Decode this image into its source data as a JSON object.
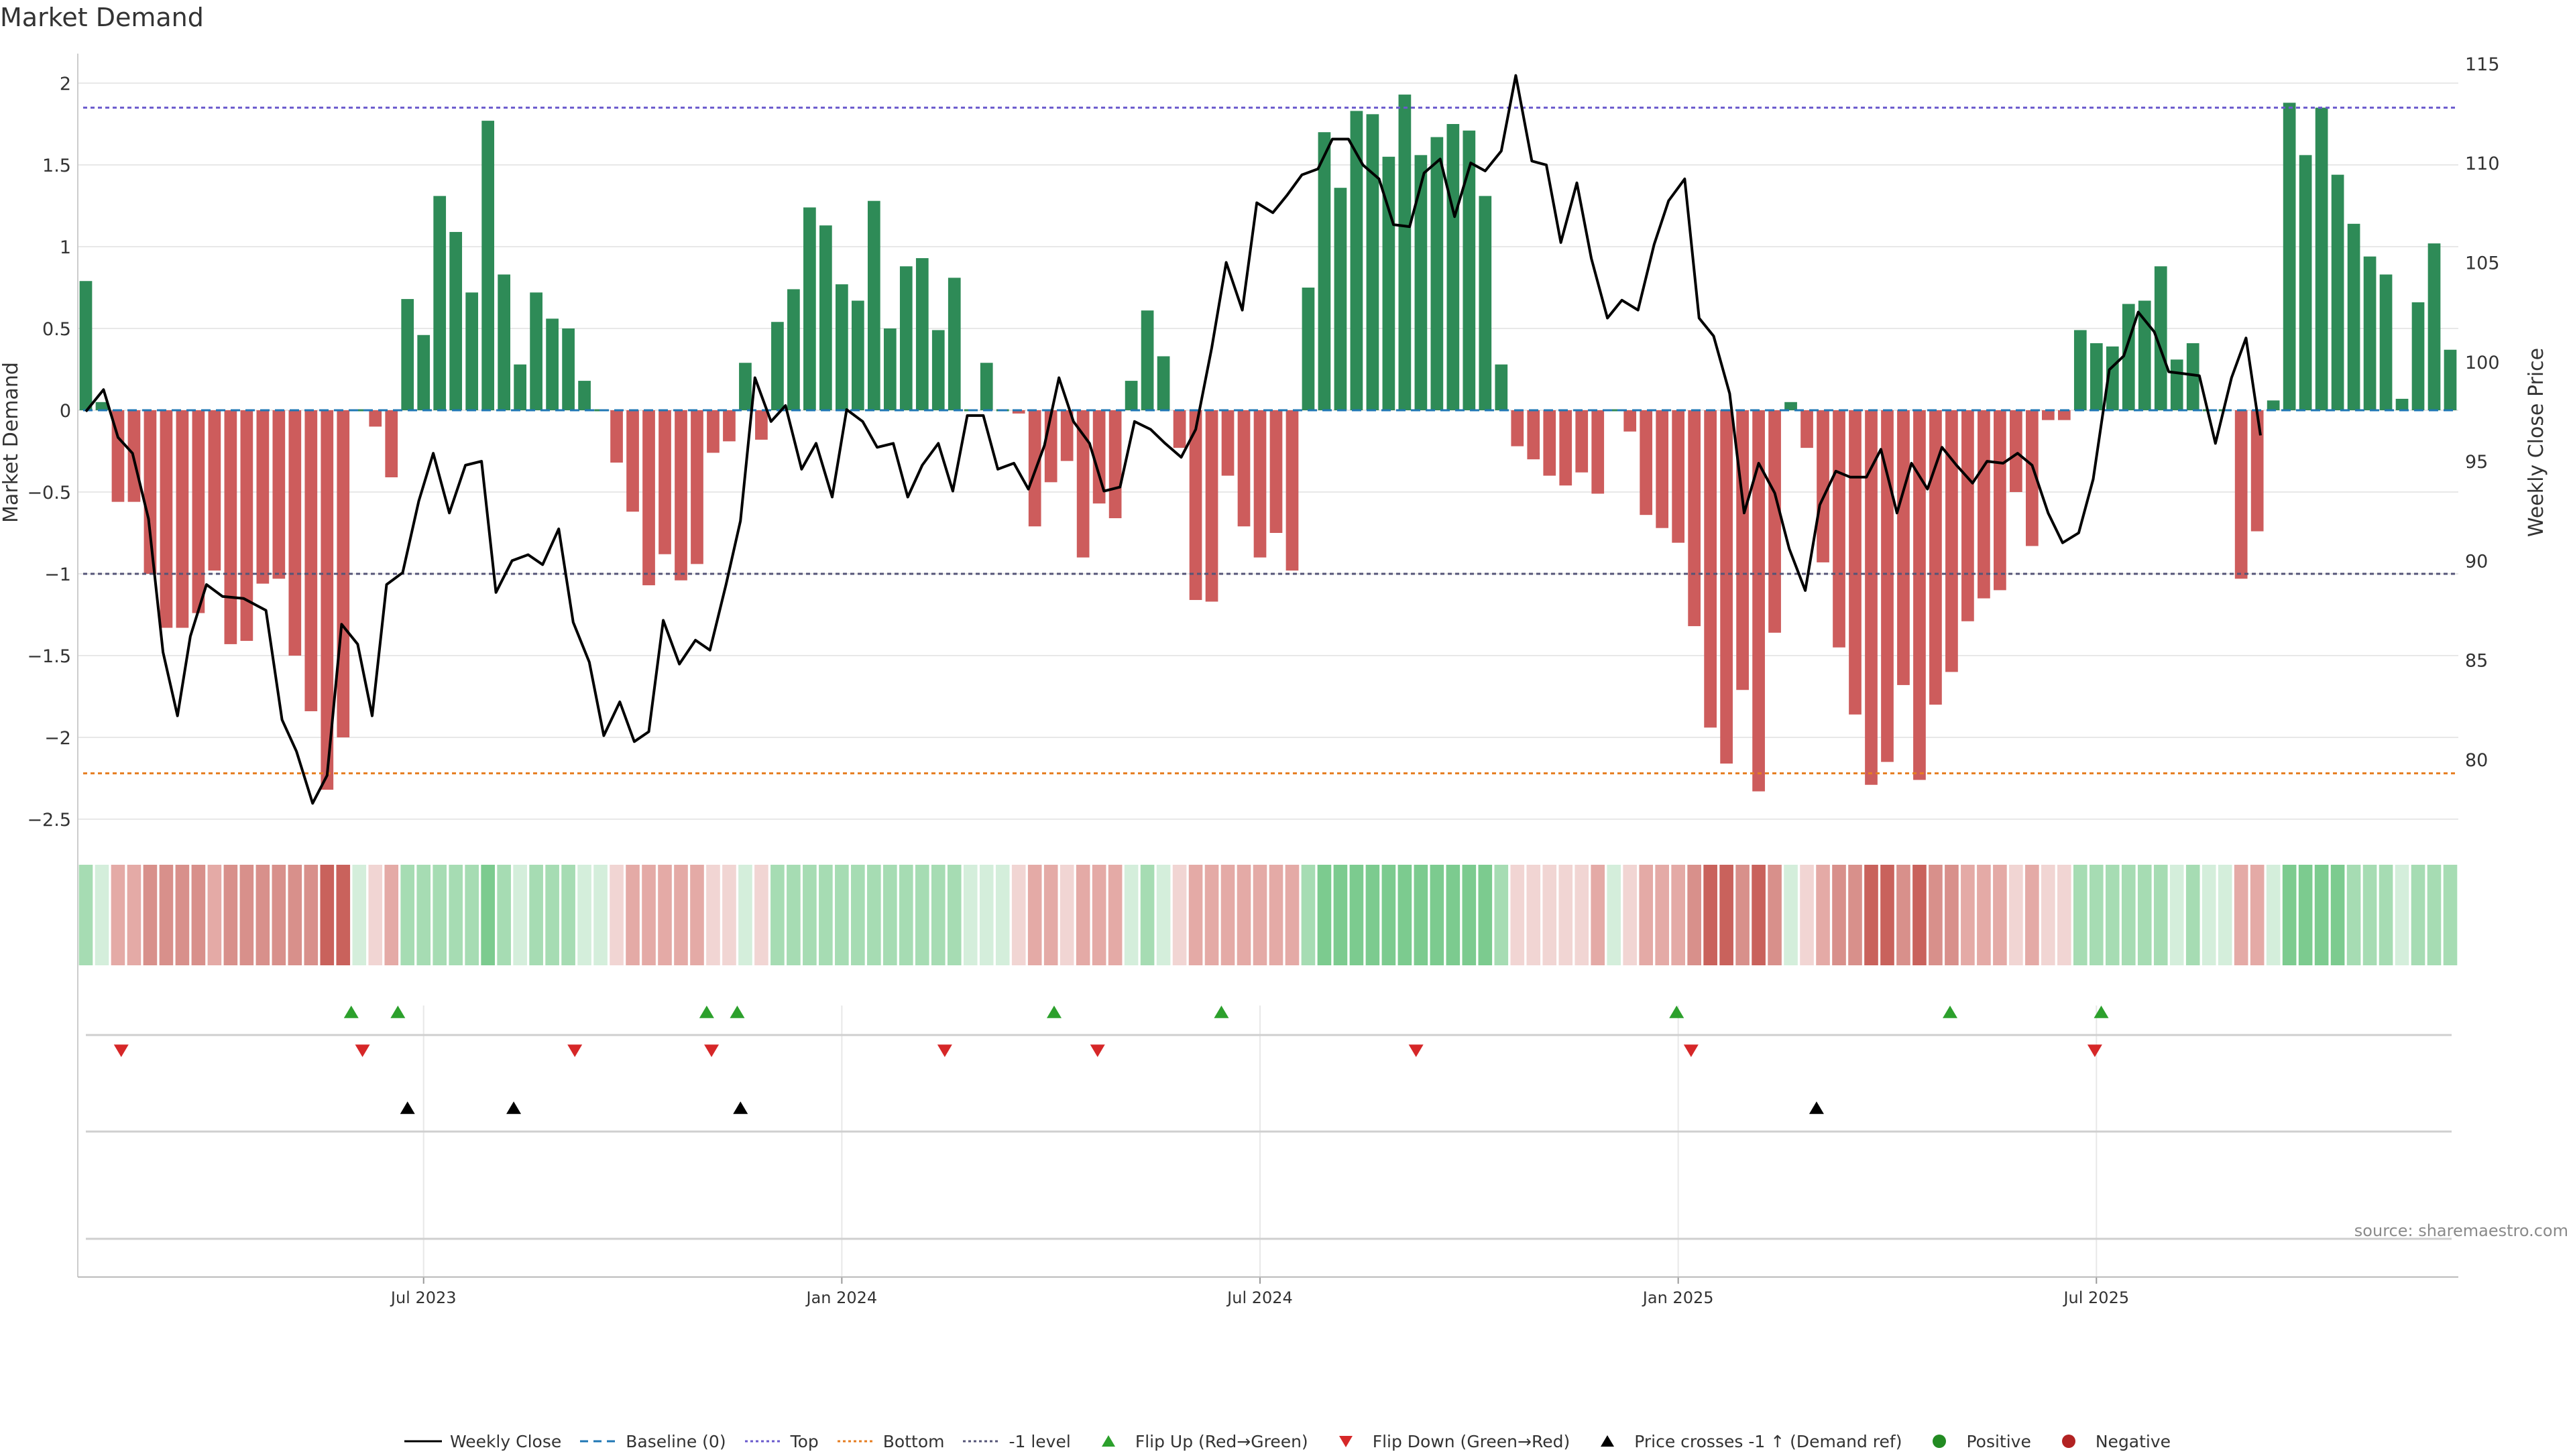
{
  "title": "Market Demand",
  "source_note": "source: sharemaestro.com",
  "colors": {
    "bar_positive": "#2e8b57",
    "bar_negative": "#cd5c5c",
    "price_line": "#000000",
    "top_line": "#6a5acd",
    "bottom_line": "#e67e22",
    "minus1_line": "#555577",
    "baseline": "#1f77b4",
    "flip_up": "#2ca02c",
    "flip_down": "#d62728",
    "cross": "#000000",
    "grid": "#e8e8e8",
    "heat_positive": "#3aa65a",
    "heat_negative": "#c0413b",
    "dot_positive": "#228b22",
    "dot_negative": "#b22222"
  },
  "chart_data": {
    "type": "bar",
    "title": "Market Demand",
    "ylabel": "Market Demand",
    "y2label": "Weekly Close Price",
    "ylim": [
      -2.5,
      2.0
    ],
    "y_ticks": [
      "2",
      "1.5",
      "1",
      "0.5",
      "0",
      "−0.5",
      "−1",
      "−1.5",
      "−2",
      "−2.5"
    ],
    "y_tick_values": [
      2,
      1.5,
      1,
      0.5,
      0,
      -0.5,
      -1,
      -1.5,
      -2,
      -2.5
    ],
    "y2lim": [
      77,
      115.5
    ],
    "y2_ticks": [
      "115",
      "110",
      "105",
      "100",
      "95",
      "90",
      "85",
      "80"
    ],
    "y2_tick_values": [
      115,
      110,
      105,
      100,
      95,
      90,
      85,
      80
    ],
    "x_tick_labels": [
      "Jul 2023",
      "Jan 2024",
      "Jul 2024",
      "Jan 2025",
      "Jul 2025"
    ],
    "x_tick_indices": [
      21.5,
      47.5,
      73.5,
      99.5,
      125.5
    ],
    "reference_lines": {
      "top": 1.85,
      "bottom": -2.22,
      "minus1": -1.0,
      "baseline": 0
    },
    "demand": [
      0.79,
      0.05,
      -0.56,
      -0.56,
      -1.0,
      -1.33,
      -1.33,
      -1.24,
      -0.98,
      -1.43,
      -1.41,
      -1.06,
      -1.03,
      -1.5,
      -1.84,
      -2.32,
      -2.0,
      0.0,
      -0.1,
      -0.41,
      0.68,
      0.46,
      1.31,
      1.09,
      0.72,
      1.77,
      0.83,
      0.28,
      0.72,
      0.56,
      0.5,
      0.18,
      0.0,
      -0.32,
      -0.62,
      -1.07,
      -0.88,
      -1.04,
      -0.94,
      -0.26,
      -0.19,
      0.29,
      -0.18,
      0.54,
      0.74,
      1.24,
      1.13,
      0.77,
      0.67,
      1.28,
      0.5,
      0.88,
      0.93,
      0.49,
      0.81,
      0.0,
      0.29,
      0.0,
      -0.02,
      -0.71,
      -0.44,
      -0.31,
      -0.9,
      -0.57,
      -0.66,
      0.18,
      0.61,
      0.33,
      -0.23,
      -1.16,
      -1.17,
      -0.4,
      -0.71,
      -0.9,
      -0.75,
      -0.98,
      0.75,
      1.7,
      1.36,
      1.83,
      1.81,
      1.55,
      1.93,
      1.56,
      1.67,
      1.75,
      1.71,
      1.31,
      0.28,
      -0.22,
      -0.3,
      -0.4,
      -0.46,
      -0.38,
      -0.51,
      0.0,
      -0.13,
      -0.64,
      -0.72,
      -0.81,
      -1.32,
      -1.94,
      -2.16,
      -1.71,
      -2.33,
      -1.36,
      0.05,
      -0.23,
      -0.93,
      -1.45,
      -1.86,
      -2.29,
      -2.15,
      -1.68,
      -2.26,
      -1.8,
      -1.6,
      -1.29,
      -1.15,
      -1.1,
      -0.5,
      -0.83,
      -0.06,
      -0.06,
      0.49,
      0.41,
      0.39,
      0.65,
      0.67,
      0.88,
      0.31,
      0.41,
      0.0,
      0.0,
      -1.03,
      -0.74,
      0.06,
      1.88,
      1.56,
      1.85,
      1.44,
      1.14,
      0.94,
      0.83,
      0.07,
      0.66,
      1.02,
      0.37
    ],
    "price_points": [
      [
        0.0,
        97.5
      ],
      [
        1.1,
        98.6
      ],
      [
        2.0,
        96.2
      ],
      [
        2.9,
        95.4
      ],
      [
        3.9,
        92.1
      ],
      [
        4.8,
        85.4
      ],
      [
        5.7,
        82.2
      ],
      [
        6.5,
        86.2
      ],
      [
        7.5,
        88.8
      ],
      [
        8.5,
        88.2
      ],
      [
        9.8,
        88.1
      ],
      [
        11.2,
        87.5
      ],
      [
        12.2,
        82.0
      ],
      [
        13.1,
        80.4
      ],
      [
        14.1,
        77.8
      ],
      [
        15.0,
        79.2
      ],
      [
        15.9,
        86.8
      ],
      [
        16.9,
        85.8
      ],
      [
        17.8,
        82.2
      ],
      [
        18.7,
        88.8
      ],
      [
        19.7,
        89.4
      ],
      [
        20.7,
        93.0
      ],
      [
        21.6,
        95.4
      ],
      [
        22.6,
        92.4
      ],
      [
        23.6,
        94.8
      ],
      [
        24.6,
        95.0
      ],
      [
        25.5,
        88.4
      ],
      [
        26.5,
        90.0
      ],
      [
        27.5,
        90.3
      ],
      [
        28.4,
        89.8
      ],
      [
        29.4,
        91.6
      ],
      [
        30.3,
        86.9
      ],
      [
        31.3,
        84.9
      ],
      [
        32.2,
        81.2
      ],
      [
        33.2,
        82.9
      ],
      [
        34.1,
        80.9
      ],
      [
        35.0,
        81.4
      ],
      [
        35.9,
        87.0
      ],
      [
        36.9,
        84.8
      ],
      [
        37.9,
        86.0
      ],
      [
        38.8,
        85.5
      ],
      [
        39.8,
        88.8
      ],
      [
        40.7,
        92.0
      ],
      [
        41.6,
        99.2
      ],
      [
        42.6,
        97.0
      ],
      [
        43.5,
        97.8
      ],
      [
        44.5,
        94.6
      ],
      [
        45.4,
        95.9
      ],
      [
        46.4,
        93.2
      ],
      [
        47.3,
        97.6
      ],
      [
        48.3,
        97.0
      ],
      [
        49.2,
        95.7
      ],
      [
        50.2,
        95.9
      ],
      [
        51.1,
        93.2
      ],
      [
        52.0,
        94.8
      ],
      [
        53.0,
        95.9
      ],
      [
        53.9,
        93.5
      ],
      [
        54.8,
        97.3
      ],
      [
        55.8,
        97.3
      ],
      [
        56.7,
        94.6
      ],
      [
        57.7,
        94.9
      ],
      [
        58.6,
        93.6
      ],
      [
        59.6,
        95.8
      ],
      [
        60.5,
        99.2
      ],
      [
        61.4,
        97.0
      ],
      [
        62.4,
        95.9
      ],
      [
        63.3,
        93.5
      ],
      [
        64.3,
        93.7
      ],
      [
        65.2,
        97.0
      ],
      [
        66.2,
        96.6
      ],
      [
        67.1,
        95.9
      ],
      [
        68.1,
        95.2
      ],
      [
        69.0,
        96.6
      ],
      [
        70.0,
        100.7
      ],
      [
        70.9,
        105.0
      ],
      [
        71.9,
        102.6
      ],
      [
        72.8,
        108.0
      ],
      [
        73.8,
        107.5
      ],
      [
        74.7,
        108.4
      ],
      [
        75.6,
        109.4
      ],
      [
        76.6,
        109.7
      ],
      [
        77.5,
        111.2
      ],
      [
        78.5,
        111.2
      ],
      [
        79.4,
        109.9
      ],
      [
        80.4,
        109.2
      ],
      [
        81.3,
        106.9
      ],
      [
        82.3,
        106.8
      ],
      [
        83.2,
        109.5
      ],
      [
        84.2,
        110.2
      ],
      [
        85.1,
        107.3
      ],
      [
        86.1,
        110.0
      ],
      [
        87.0,
        109.6
      ],
      [
        88.0,
        110.6
      ],
      [
        88.9,
        114.4
      ],
      [
        89.9,
        110.1
      ],
      [
        90.8,
        109.9
      ],
      [
        91.7,
        106.0
      ],
      [
        92.7,
        109.0
      ],
      [
        93.6,
        105.2
      ],
      [
        94.6,
        102.2
      ],
      [
        95.5,
        103.1
      ],
      [
        96.5,
        102.6
      ],
      [
        97.5,
        105.9
      ],
      [
        98.4,
        108.1
      ],
      [
        99.4,
        109.2
      ],
      [
        100.3,
        102.2
      ],
      [
        101.2,
        101.3
      ],
      [
        102.2,
        98.4
      ],
      [
        103.1,
        92.4
      ],
      [
        104.0,
        94.9
      ],
      [
        105.0,
        93.4
      ],
      [
        105.9,
        90.6
      ],
      [
        106.9,
        88.5
      ],
      [
        107.8,
        92.8
      ],
      [
        108.8,
        94.5
      ],
      [
        109.7,
        94.2
      ],
      [
        110.7,
        94.2
      ],
      [
        111.6,
        95.6
      ],
      [
        112.6,
        92.4
      ],
      [
        113.5,
        94.9
      ],
      [
        114.5,
        93.6
      ],
      [
        115.4,
        95.7
      ],
      [
        116.3,
        94.8
      ],
      [
        117.3,
        93.9
      ],
      [
        118.2,
        95.0
      ],
      [
        119.2,
        94.9
      ],
      [
        120.1,
        95.4
      ],
      [
        121.0,
        94.8
      ],
      [
        122.0,
        92.4
      ],
      [
        122.9,
        90.9
      ],
      [
        123.9,
        91.4
      ],
      [
        124.8,
        94.1
      ],
      [
        125.8,
        99.6
      ],
      [
        126.7,
        100.3
      ],
      [
        127.6,
        102.5
      ],
      [
        128.6,
        101.5
      ],
      [
        129.5,
        99.5
      ],
      [
        130.5,
        99.4
      ],
      [
        131.4,
        99.3
      ],
      [
        132.4,
        95.9
      ],
      [
        133.4,
        99.2
      ],
      [
        134.3,
        101.2
      ],
      [
        135.2,
        96.3
      ]
    ],
    "heat_strip": [
      2,
      1,
      2,
      2,
      3,
      3,
      3,
      3,
      2,
      3,
      3,
      3,
      3,
      3,
      3,
      4,
      4,
      1,
      1,
      2,
      2,
      2,
      2,
      2,
      2,
      3,
      2,
      1,
      2,
      2,
      2,
      1,
      1,
      1,
      2,
      2,
      2,
      2,
      2,
      1,
      1,
      1,
      1,
      2,
      2,
      2,
      2,
      2,
      2,
      2,
      2,
      2,
      2,
      2,
      2,
      1,
      1,
      1,
      1,
      2,
      2,
      1,
      2,
      2,
      2,
      1,
      2,
      1,
      1,
      2,
      2,
      2,
      2,
      2,
      2,
      2,
      2,
      3,
      3,
      3,
      3,
      3,
      3,
      3,
      3,
      3,
      3,
      3,
      2,
      1,
      1,
      1,
      1,
      1,
      2,
      1,
      1,
      2,
      2,
      2,
      3,
      4,
      4,
      3,
      4,
      3,
      1,
      1,
      2,
      3,
      3,
      4,
      4,
      3,
      4,
      3,
      3,
      2,
      2,
      2,
      1,
      2,
      1,
      1,
      2,
      2,
      2,
      2,
      2,
      2,
      1,
      2,
      1,
      1,
      2,
      2,
      1,
      3,
      3,
      3,
      3,
      2,
      2,
      2,
      1,
      2,
      2,
      2
    ],
    "flip_up_indices": [
      16.5,
      19.4,
      38.6,
      40.5,
      60.2,
      70.6,
      98.9,
      115.9,
      125.3
    ],
    "flip_down_indices": [
      2.2,
      17.2,
      30.4,
      38.9,
      53.4,
      62.9,
      82.7,
      99.8,
      124.9
    ],
    "cross_up_indices": [
      20.0,
      26.6,
      40.7,
      107.6
    ],
    "legend": [
      "Weekly Close",
      "Baseline (0)",
      "Top",
      "Bottom",
      "-1 level",
      "Flip Up (Red→Green)",
      "Flip Down (Green→Red)",
      "Price crosses -1 ↑ (Demand ref)",
      "Positive",
      "Negative"
    ]
  }
}
